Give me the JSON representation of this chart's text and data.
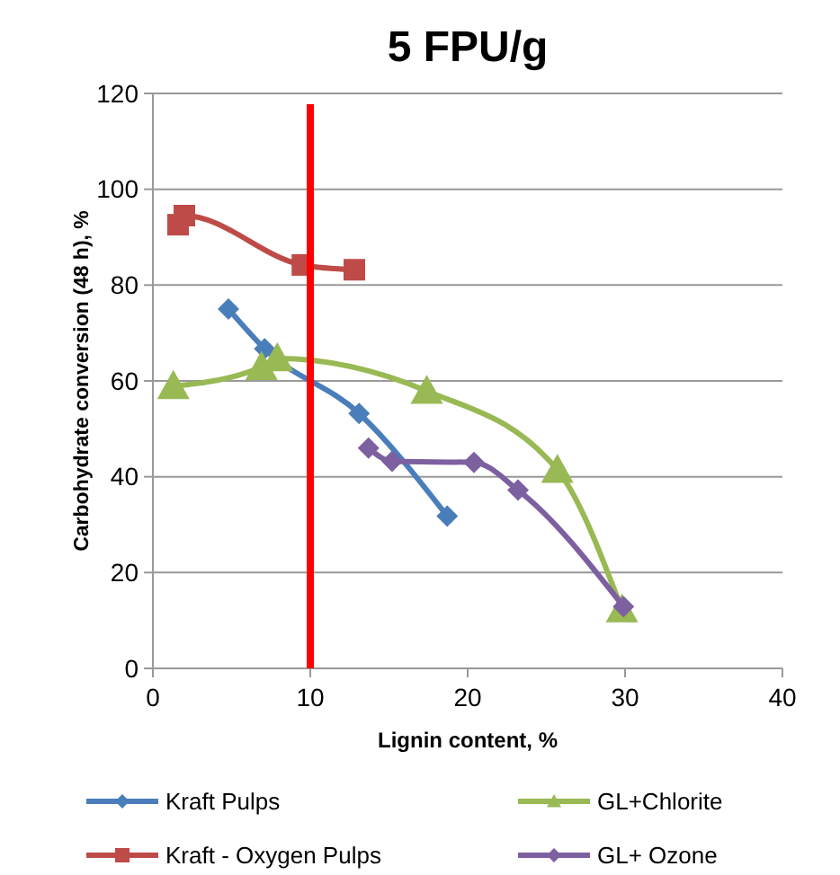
{
  "chart_data": {
    "type": "line",
    "title": "5 FPU/g",
    "xlabel": "Lignin content, %",
    "ylabel": "Carbohydrate conversion (48 h), %",
    "xlim": [
      0,
      40
    ],
    "xticks": [
      0,
      10,
      20,
      30,
      40
    ],
    "ylim": [
      0,
      120
    ],
    "yticks": [
      0,
      20,
      40,
      60,
      80,
      100,
      120
    ],
    "grid": "y",
    "legend": "bottom",
    "line_style": "solid",
    "series": [
      {
        "name": "Kraft Pulps",
        "color": "#4a7ebb",
        "marker": "diamond",
        "x": [
          4.8,
          7.1,
          13.1,
          18.7
        ],
        "values": [
          75,
          66.7,
          53.2,
          31.8
        ]
      },
      {
        "name": "Kraft - Oxygen Pulps",
        "color": "#be4b48",
        "marker": "square",
        "x": [
          1.6,
          2.0,
          9.5,
          12.8
        ],
        "values": [
          92.6,
          94.5,
          84.2,
          83.2
        ]
      },
      {
        "name": "GL+Chlorite",
        "color": "#98b954",
        "marker": "triangle",
        "x": [
          1.3,
          6.9,
          7.9,
          17.4,
          25.7,
          29.8
        ],
        "values": [
          58.9,
          62.9,
          64.7,
          57.9,
          41.4,
          12.3
        ]
      },
      {
        "name": "GL+ Ozone",
        "color": "#7d60a0",
        "marker": "diamond",
        "x": [
          13.7,
          15.2,
          20.4,
          23.2,
          29.9
        ],
        "values": [
          46,
          43.2,
          43,
          37.2,
          12.9
        ]
      }
    ],
    "ref_lines": [
      {
        "axis": "x",
        "value": 10,
        "color": "#ff0000",
        "line_style": "solid"
      }
    ]
  }
}
